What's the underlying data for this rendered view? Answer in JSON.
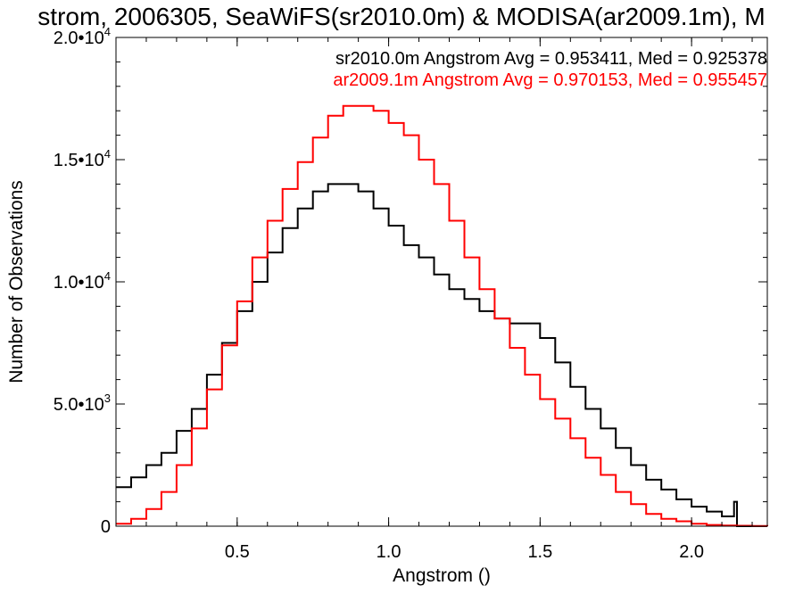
{
  "chart_data": {
    "type": "line",
    "title": "strom, 2006305, SeaWiFS(sr2010.0m) & MODISA(ar2009.1m), M",
    "xlabel": "Angstrom ()",
    "ylabel": "Number of Observations",
    "xlim": [
      0.1,
      2.25
    ],
    "ylim": [
      0,
      20000
    ],
    "xticks": [
      {
        "value": 0.5,
        "label": "0.5"
      },
      {
        "value": 1.0,
        "label": "1.0"
      },
      {
        "value": 1.5,
        "label": "1.5"
      },
      {
        "value": 2.0,
        "label": "2.0"
      }
    ],
    "yticks": [
      {
        "value": 0,
        "mant": "0",
        "exp": ""
      },
      {
        "value": 5000,
        "mant": "5.0•10",
        "exp": "3"
      },
      {
        "value": 10000,
        "mant": "1.0•10",
        "exp": "4"
      },
      {
        "value": 15000,
        "mant": "1.5•10",
        "exp": "4"
      },
      {
        "value": 20000,
        "mant": "2.0•10",
        "exp": "4"
      }
    ],
    "legend_position": "top-right",
    "grid": false,
    "step": "histogram",
    "series": [
      {
        "name": "sr2010.0m",
        "label": "sr2010.0m Angstrom Avg = 0.953411, Med = 0.925378",
        "color": "#000000",
        "x": [
          0.1,
          0.15,
          0.2,
          0.25,
          0.3,
          0.35,
          0.4,
          0.45,
          0.5,
          0.55,
          0.6,
          0.65,
          0.7,
          0.75,
          0.8,
          0.85,
          0.9,
          0.95,
          1.0,
          1.05,
          1.1,
          1.15,
          1.2,
          1.25,
          1.3,
          1.35,
          1.4,
          1.45,
          1.5,
          1.55,
          1.6,
          1.65,
          1.7,
          1.75,
          1.8,
          1.85,
          1.9,
          1.95,
          2.0,
          2.05,
          2.1,
          2.14,
          2.15,
          2.2,
          2.25
        ],
        "y": [
          1600,
          2000,
          2500,
          3000,
          3900,
          4800,
          6200,
          7500,
          8800,
          10000,
          11200,
          12200,
          13000,
          13700,
          14000,
          14000,
          13700,
          13000,
          12300,
          11500,
          11000,
          10300,
          9700,
          9300,
          8800,
          8500,
          8300,
          8300,
          7700,
          6700,
          5700,
          4800,
          4000,
          3200,
          2500,
          1900,
          1500,
          1100,
          800,
          600,
          400,
          1000,
          0,
          0,
          0
        ]
      },
      {
        "name": "ar2009.1m",
        "label": "ar2009.1m Angstrom Avg = 0.970153, Med = 0.955457",
        "color": "#ff0000",
        "x": [
          0.1,
          0.15,
          0.2,
          0.25,
          0.3,
          0.35,
          0.4,
          0.45,
          0.5,
          0.55,
          0.6,
          0.65,
          0.7,
          0.75,
          0.8,
          0.85,
          0.9,
          0.95,
          1.0,
          1.05,
          1.1,
          1.15,
          1.2,
          1.25,
          1.3,
          1.35,
          1.4,
          1.45,
          1.5,
          1.55,
          1.6,
          1.65,
          1.7,
          1.75,
          1.8,
          1.85,
          1.9,
          1.95,
          2.0,
          2.05,
          2.1,
          2.15,
          2.2,
          2.25
        ],
        "y": [
          100,
          300,
          700,
          1400,
          2500,
          4000,
          5600,
          7400,
          9200,
          11000,
          12500,
          13800,
          14900,
          15900,
          16800,
          17200,
          17200,
          17000,
          16500,
          16000,
          15000,
          14000,
          12500,
          11000,
          9700,
          8500,
          7300,
          6200,
          5200,
          4400,
          3600,
          2800,
          2100,
          1400,
          900,
          500,
          300,
          200,
          100,
          50,
          30,
          20,
          10,
          0
        ]
      }
    ]
  }
}
